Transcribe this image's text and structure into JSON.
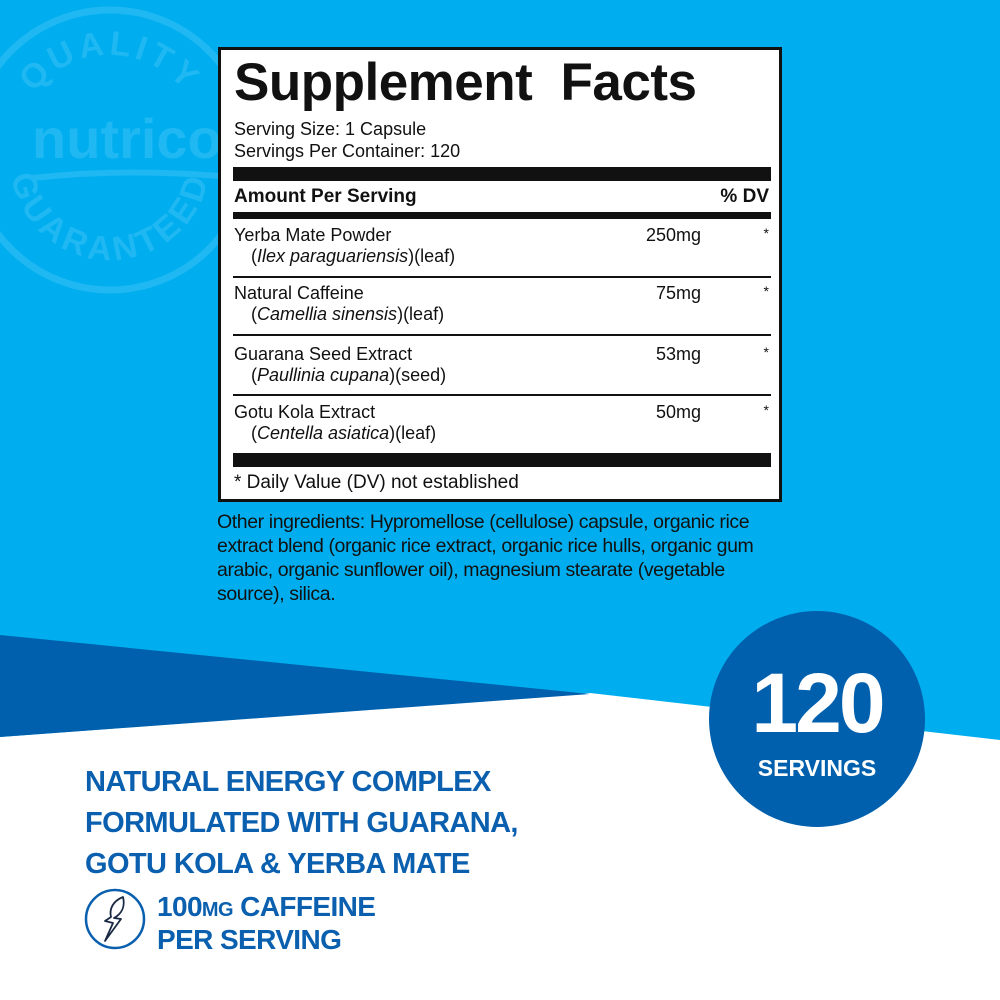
{
  "colors": {
    "light_blue": "#00aeef",
    "dark_blue": "#0060ad",
    "white": "#ffffff",
    "text": "#111111"
  },
  "seal": {
    "top_text": "QUALITY",
    "brand": "nutricost",
    "bottom_text": "GUARANTEED"
  },
  "facts": {
    "title": "Supplement Facts",
    "serving_size": "Serving Size: 1 Capsule",
    "servings_per_container": "Servings Per Container: 120",
    "header_amount": "Amount Per Serving",
    "header_dv": "% DV",
    "rows": [
      {
        "name": "Yerba Mate Powder",
        "latin": "Ilex paraguariensis",
        "part": "(leaf)",
        "amount": "250mg",
        "dv": "*"
      },
      {
        "name": "Natural Caffeine",
        "latin": "Camellia sinensis",
        "part": "(leaf)",
        "amount": "75mg",
        "dv": "*"
      },
      {
        "name": "Guarana Seed Extract",
        "latin": "Paullinia cupana",
        "part": "(seed)",
        "amount": "53mg",
        "dv": "*"
      },
      {
        "name": "Gotu Kola Extract",
        "latin": "Centella asiatica",
        "part": "(leaf)",
        "amount": "50mg",
        "dv": "*"
      }
    ],
    "footnote": "* Daily Value (DV) not established"
  },
  "other_ingredients": "Other ingredients: Hypromellose (cellulose) capsule, organic rice extract blend (organic rice extract, organic rice hulls, organic gum arabic, organic sunflower oil), magnesium stearate (vegetable source), silica.",
  "badge": {
    "number": "120",
    "label": "SERVINGS"
  },
  "headline": [
    "NATURAL ENERGY COMPLEX",
    "FORMULATED WITH GUARANA,",
    "GOTU KOLA & YERBA MATE"
  ],
  "caffeine": {
    "amount": "100",
    "unit": "MG",
    "rest": " CAFFEINE",
    "line2": "PER SERVING",
    "icon": "leaf-lightning-icon"
  }
}
